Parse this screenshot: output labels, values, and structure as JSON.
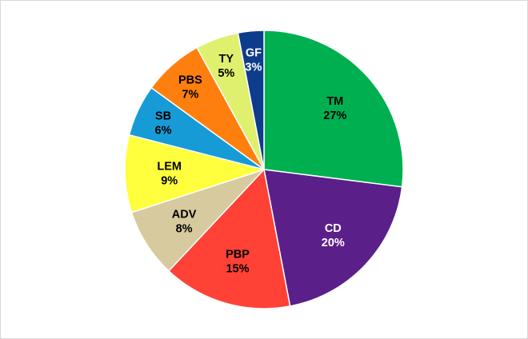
{
  "chart_data": {
    "type": "pie",
    "title": "",
    "legend": "none",
    "slices": [
      {
        "label": "TM",
        "value": 27,
        "value_label": "27%",
        "color": "#00b050",
        "text_color": "#000000"
      },
      {
        "label": "CD",
        "value": 20,
        "value_label": "20%",
        "color": "#5b1f8a",
        "text_color": "#ffffff"
      },
      {
        "label": "PBP",
        "value": 15,
        "value_label": "15%",
        "color": "#ff4136",
        "text_color": "#000000"
      },
      {
        "label": "ADV",
        "value": 8,
        "value_label": "8%",
        "color": "#d6ca9e",
        "text_color": "#000000"
      },
      {
        "label": "LEM",
        "value": 9,
        "value_label": "9%",
        "color": "#ffff3d",
        "text_color": "#000000"
      },
      {
        "label": "SB",
        "value": 6,
        "value_label": "6%",
        "color": "#169bd7",
        "text_color": "#000000"
      },
      {
        "label": "PBS",
        "value": 7,
        "value_label": "7%",
        "color": "#ff7f0e",
        "text_color": "#000000"
      },
      {
        "label": "TY",
        "value": 5,
        "value_label": "5%",
        "color": "#dff06f",
        "text_color": "#000000"
      },
      {
        "label": "GF",
        "value": 3,
        "value_label": "3%",
        "color": "#0e3c8c",
        "text_color": "#ffffff"
      }
    ]
  }
}
